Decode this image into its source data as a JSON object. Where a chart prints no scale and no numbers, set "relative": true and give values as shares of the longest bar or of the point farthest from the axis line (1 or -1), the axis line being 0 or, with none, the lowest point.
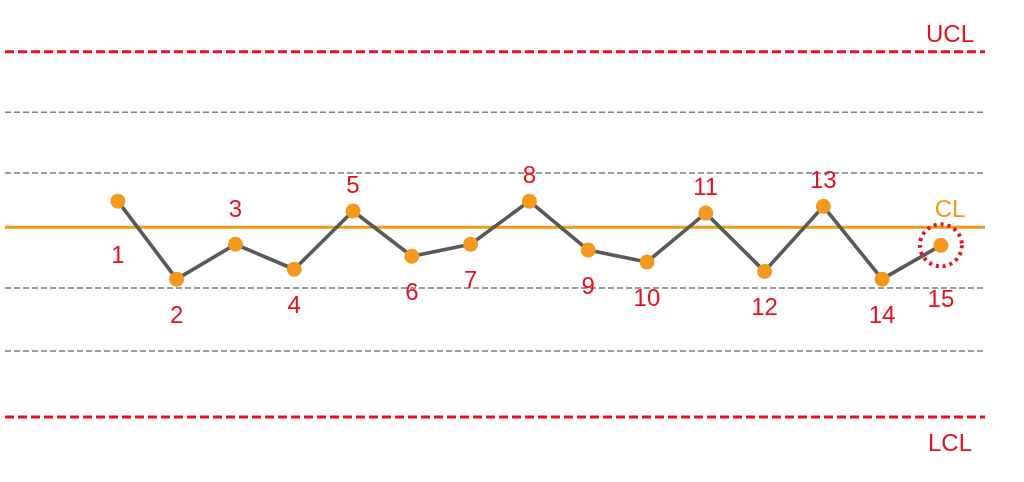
{
  "chart_data": {
    "type": "line",
    "relative": true,
    "marker": "circle",
    "categories": [
      "1",
      "2",
      "3",
      "4",
      "5",
      "6",
      "7",
      "8",
      "9",
      "10",
      "11",
      "12",
      "13",
      "14",
      "15"
    ],
    "series": [
      {
        "color": "#595959",
        "colors": [
          "#f39a1e",
          "#f39a1e",
          "#f39a1e",
          "#f39a1e",
          "#f39a1e",
          "#f39a1e",
          "#f39a1e",
          "#f39a1e",
          "#f39a1e",
          "#f39a1e",
          "#f39a1e",
          "#f39a1e",
          "#f39a1e",
          "#f39a1e",
          "#f39a1e"
        ],
        "values": [
          0.5,
          -1,
          -0.33,
          -0.81,
          0.31,
          -0.56,
          -0.33,
          0.5,
          -0.44,
          -0.67,
          0.27,
          -0.85,
          0.4,
          -1,
          -0.35
        ]
      },
      {
        "type": "scatter",
        "color": "#e8101e",
        "marker": "circle",
        "line_style": "dotted",
        "values": [
          null,
          null,
          null,
          null,
          null,
          null,
          null,
          null,
          null,
          null,
          null,
          null,
          null,
          null,
          -0.35
        ]
      }
    ],
    "ref_lines": [
      {
        "axis": "y",
        "value": 3.37,
        "label": "UCL",
        "color": "#e8101e",
        "line_style": "dashed"
      },
      {
        "axis": "y",
        "value": 2.21,
        "color": "#7f7f7f",
        "line_style": "dashed"
      },
      {
        "axis": "y",
        "value": 1.04,
        "color": "#7f7f7f",
        "line_style": "dashed"
      },
      {
        "axis": "y",
        "value": 0,
        "label": "CL",
        "color": "#f39a1e",
        "line_style": "solid"
      },
      {
        "axis": "y",
        "value": -1.17,
        "color": "#7f7f7f",
        "line_style": "dashed"
      },
      {
        "axis": "y",
        "value": -2.38,
        "color": "#7f7f7f",
        "line_style": "dashed"
      },
      {
        "axis": "y",
        "value": -3.65,
        "label": "LCL",
        "color": "#e8101e",
        "line_style": "dashed"
      }
    ]
  }
}
